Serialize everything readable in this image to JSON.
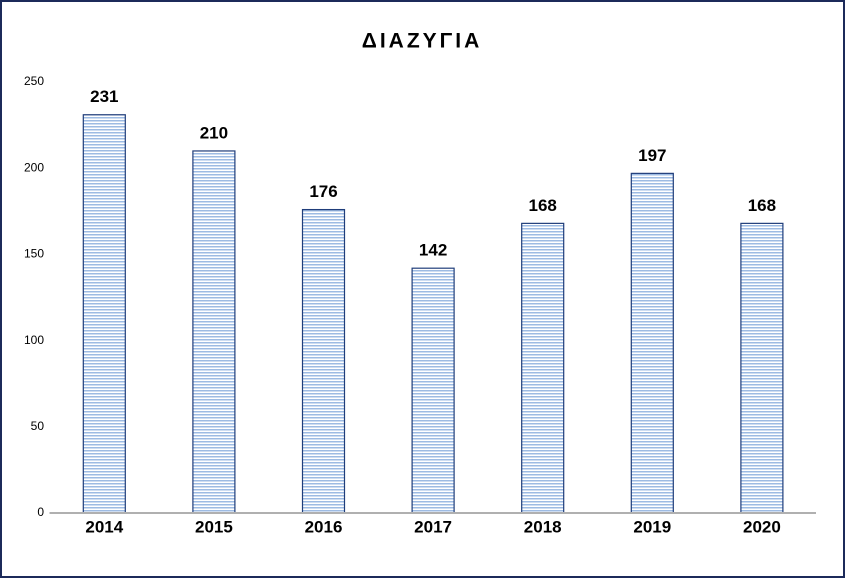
{
  "chart_data": {
    "type": "bar",
    "title": "ΔΙΑΖΥΓΙΑ",
    "categories": [
      "2014",
      "2015",
      "2016",
      "2017",
      "2018",
      "2019",
      "2020"
    ],
    "values": [
      231,
      210,
      176,
      142,
      168,
      197,
      168
    ],
    "color": "#9dbbe3",
    "edgecolor": "#1f3d7a",
    "ylim": [
      0,
      250
    ],
    "yticks": [
      0,
      50,
      100,
      150,
      200,
      250
    ],
    "grid": false
  }
}
